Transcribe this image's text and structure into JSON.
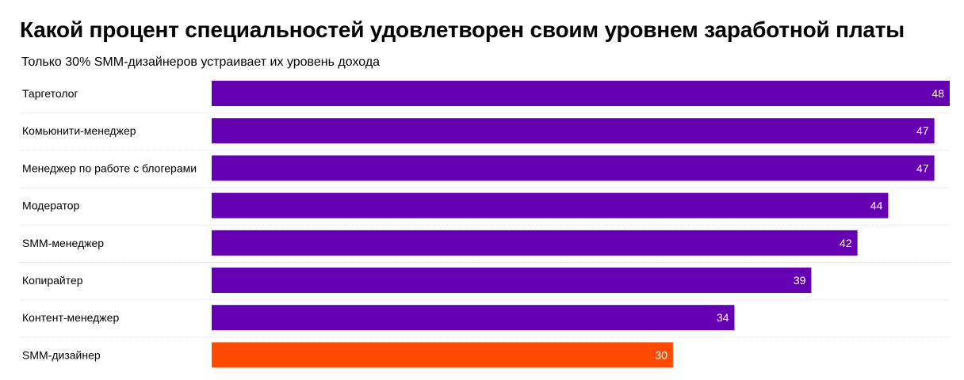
{
  "chart_data": {
    "type": "bar",
    "orientation": "horizontal",
    "title": "Какой процент специальностей удовлетворен своим уровнем заработной платы",
    "subtitle": "Только 30% SMM-дизайнеров устраивает их уровень дохода",
    "categories": [
      "Таргетолог",
      "Комьюнити-менеджер",
      "Менеджер по работе с блогерами",
      "Модератор",
      "SMM-менеджер",
      "Копирайтер",
      "Контент-менеджер",
      "SMM-дизайнер"
    ],
    "values": [
      48,
      47,
      47,
      44,
      42,
      39,
      34,
      30
    ],
    "value_labels": [
      "48",
      "47",
      "47",
      "44",
      "42",
      "39",
      "34",
      "30"
    ],
    "xlim": [
      0,
      48
    ],
    "grid": false,
    "colors": {
      "default_bar": "#6600b3",
      "highlight_bar": "#ff4a00",
      "value_label": "#ffffff",
      "separator": "#dddddd"
    },
    "highlight_category": "SMM-дизайнер"
  }
}
